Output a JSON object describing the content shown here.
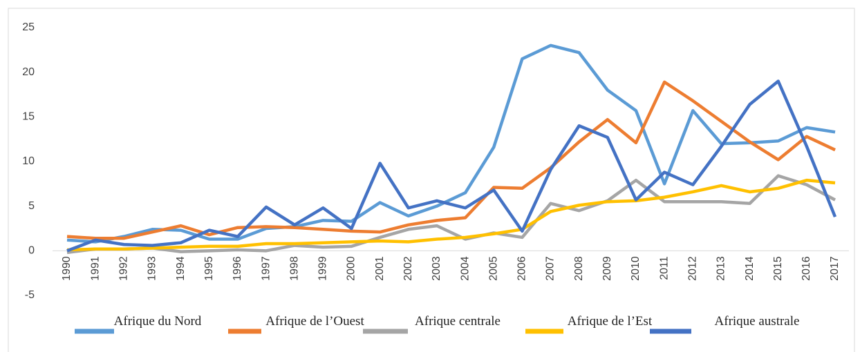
{
  "chart_data": {
    "type": "line",
    "categories": [
      "1990",
      "1991",
      "1992",
      "1993",
      "1994",
      "1995",
      "1996",
      "1997",
      "1998",
      "1999",
      "2000",
      "2001",
      "2002",
      "2003",
      "2004",
      "2005",
      "2006",
      "2007",
      "2008",
      "2009",
      "2010",
      "2011",
      "2012",
      "2013",
      "2014",
      "2015",
      "2016",
      "2017"
    ],
    "series": [
      {
        "name": "Afrique du Nord",
        "color": "#5b9bd5",
        "values": [
          1.2,
          1.0,
          1.6,
          2.4,
          2.3,
          1.3,
          1.3,
          2.5,
          2.7,
          3.4,
          3.3,
          5.4,
          3.9,
          5.0,
          6.5,
          11.6,
          21.5,
          23.0,
          22.2,
          18.0,
          15.7,
          7.5,
          15.7,
          12.0,
          12.1,
          12.3,
          13.8,
          13.3
        ]
      },
      {
        "name": "Afrique de l’Ouest",
        "color": "#ed7d31",
        "values": [
          1.6,
          1.4,
          1.4,
          2.1,
          2.8,
          1.8,
          2.6,
          2.7,
          2.6,
          2.4,
          2.2,
          2.1,
          2.9,
          3.4,
          3.7,
          7.1,
          7.0,
          9.3,
          12.2,
          14.7,
          12.1,
          18.9,
          16.8,
          14.5,
          12.2,
          10.2,
          12.8,
          11.3
        ]
      },
      {
        "name": "Afrique centrale",
        "color": "#a5a5a5",
        "values": [
          -0.2,
          0.2,
          0.2,
          0.3,
          -0.1,
          0.0,
          0.1,
          0.0,
          0.6,
          0.4,
          0.5,
          1.5,
          2.4,
          2.8,
          1.3,
          2.0,
          1.5,
          5.3,
          4.5,
          5.6,
          7.9,
          5.5,
          5.5,
          5.5,
          5.3,
          8.4,
          7.4,
          5.7
        ]
      },
      {
        "name": "Afrique de l’Est",
        "color": "#ffc000",
        "values": [
          0.1,
          0.2,
          0.2,
          0.3,
          0.4,
          0.5,
          0.5,
          0.8,
          0.8,
          0.9,
          1.0,
          1.1,
          1.0,
          1.3,
          1.5,
          1.9,
          2.4,
          4.4,
          5.1,
          5.5,
          5.6,
          6.0,
          6.6,
          7.3,
          6.6,
          7.0,
          7.9,
          7.6
        ]
      },
      {
        "name": "Afrique australe",
        "color": "#4472c4",
        "values": [
          0.0,
          1.2,
          0.7,
          0.6,
          0.9,
          2.3,
          1.6,
          4.9,
          2.9,
          4.8,
          2.5,
          9.8,
          4.8,
          5.6,
          4.8,
          6.8,
          2.2,
          9.1,
          14.0,
          12.7,
          5.7,
          8.8,
          7.4,
          11.7,
          16.4,
          19.0,
          11.7,
          3.8
        ]
      }
    ],
    "ylim": [
      -5,
      25
    ],
    "yticks": [
      -5,
      0,
      5,
      10,
      15,
      20,
      25
    ],
    "legend": "bottom"
  }
}
